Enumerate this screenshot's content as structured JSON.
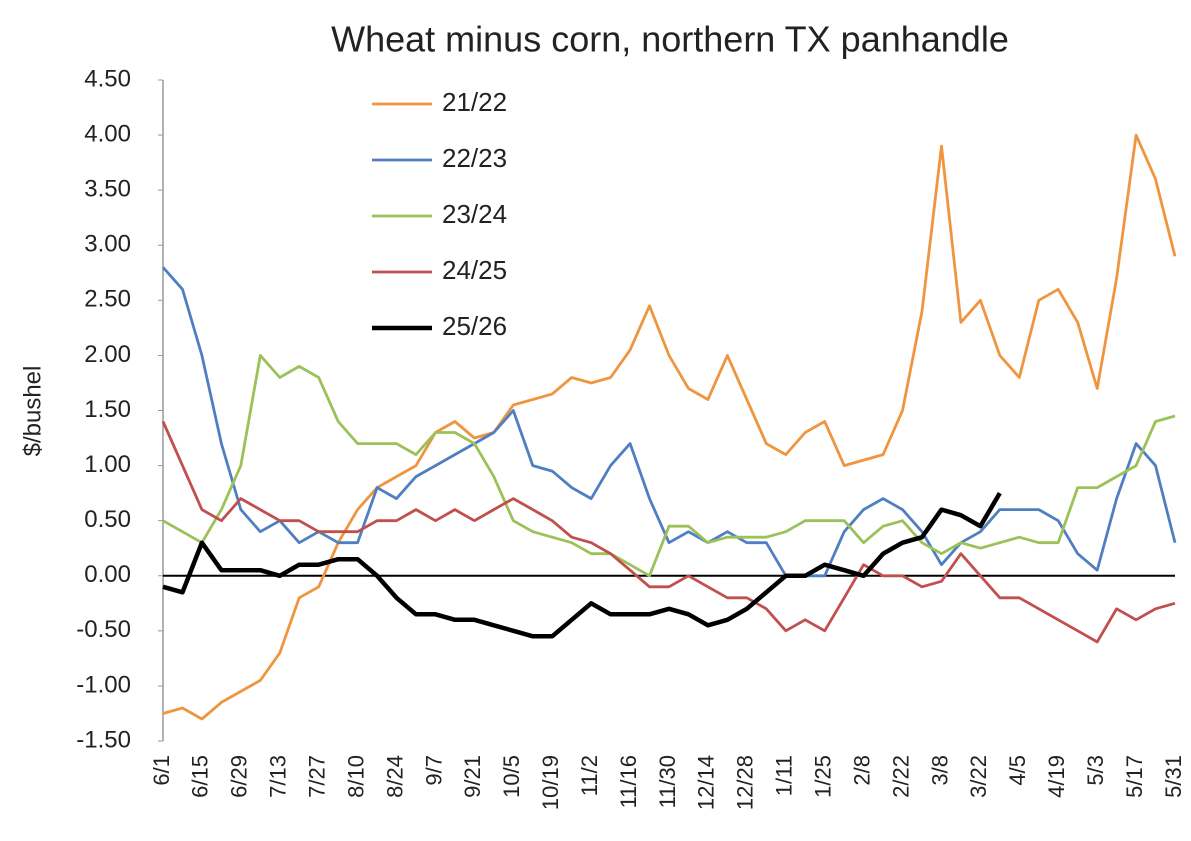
{
  "chart_data": {
    "type": "line",
    "title": "Wheat minus corn, northern TX panhandle",
    "y_label": "$/bushel",
    "categories": [
      "6/1",
      null,
      "6/15",
      null,
      "6/29",
      null,
      "7/13",
      null,
      "7/27",
      null,
      "8/10",
      null,
      "8/24",
      null,
      "9/7",
      null,
      "9/21",
      null,
      "10/5",
      null,
      "10/19",
      null,
      "11/2",
      null,
      "11/16",
      null,
      "11/30",
      null,
      "12/14",
      null,
      "12/28",
      null,
      "1/11",
      null,
      "1/25",
      null,
      "2/8",
      null,
      "2/22",
      null,
      "3/8",
      null,
      "3/22",
      null,
      "4/5",
      null,
      "4/19",
      null,
      "5/3",
      null,
      "5/17",
      null,
      "5/31"
    ],
    "ylim": [
      -1.5,
      4.5
    ],
    "yticks": [
      {
        "value": -1.5,
        "label": "-1.50"
      },
      {
        "value": -1,
        "label": "-1.00"
      },
      {
        "value": -0.5,
        "label": "-0.50"
      },
      {
        "value": 0,
        "label": "0.00"
      },
      {
        "value": 0.5,
        "label": "0.50"
      },
      {
        "value": 1,
        "label": "1.00"
      },
      {
        "value": 1.5,
        "label": "1.50"
      },
      {
        "value": 2,
        "label": "2.00"
      },
      {
        "value": 2.5,
        "label": "2.50"
      },
      {
        "value": 3,
        "label": "3.00"
      },
      {
        "value": 3.5,
        "label": "3.50"
      },
      {
        "value": 4,
        "label": "4.00"
      },
      {
        "value": 4.5,
        "label": "4.50"
      }
    ],
    "grid": false,
    "legend": "upper left",
    "series": [
      {
        "name": "21/22",
        "color": "#f0953f",
        "values": [
          -1.25,
          -1.2,
          -1.3,
          -1.15,
          -1.05,
          -0.95,
          -0.7,
          -0.2,
          -0.1,
          0.3,
          0.6,
          0.8,
          0.9,
          1.0,
          1.3,
          1.4,
          1.25,
          1.3,
          1.55,
          1.6,
          1.65,
          1.8,
          1.75,
          1.8,
          2.05,
          2.45,
          2.0,
          1.7,
          1.6,
          2.0,
          1.6,
          1.2,
          1.1,
          1.3,
          1.4,
          1.0,
          1.05,
          1.1,
          1.5,
          2.4,
          3.9,
          2.3,
          2.5,
          2.0,
          1.8,
          2.5,
          2.6,
          2.3,
          1.7,
          2.7,
          4.0,
          3.6,
          2.9
        ]
      },
      {
        "name": "22/23",
        "color": "#4f7fc0",
        "values": [
          2.8,
          2.6,
          2.0,
          1.2,
          0.6,
          0.4,
          0.5,
          0.3,
          0.4,
          0.3,
          0.3,
          0.8,
          0.7,
          0.9,
          1.0,
          1.1,
          1.2,
          1.3,
          1.5,
          1.0,
          0.95,
          0.8,
          0.7,
          1.0,
          1.2,
          0.7,
          0.3,
          0.4,
          0.3,
          0.4,
          0.3,
          0.3,
          0.0,
          0.0,
          0.0,
          0.4,
          0.6,
          0.7,
          0.6,
          0.4,
          0.1,
          0.3,
          0.4,
          0.6,
          0.6,
          0.6,
          0.5,
          0.2,
          0.05,
          0.7,
          1.2,
          1.0,
          0.3
        ]
      },
      {
        "name": "23/24",
        "color": "#9bc259",
        "values": [
          0.5,
          0.4,
          0.3,
          0.6,
          1.0,
          2.0,
          1.8,
          1.9,
          1.8,
          1.4,
          1.2,
          1.2,
          1.2,
          1.1,
          1.3,
          1.3,
          1.2,
          0.9,
          0.5,
          0.4,
          0.35,
          0.3,
          0.2,
          0.2,
          0.1,
          0.0,
          0.45,
          0.45,
          0.3,
          0.35,
          0.35,
          0.35,
          0.4,
          0.5,
          0.5,
          0.5,
          0.3,
          0.45,
          0.5,
          0.3,
          0.2,
          0.3,
          0.25,
          0.3,
          0.35,
          0.3,
          0.3,
          0.8,
          0.8,
          0.9,
          1.0,
          1.4,
          1.45
        ]
      },
      {
        "name": "24/25",
        "color": "#c0504d",
        "values": [
          1.4,
          1.0,
          0.6,
          0.5,
          0.7,
          0.6,
          0.5,
          0.5,
          0.4,
          0.4,
          0.4,
          0.5,
          0.5,
          0.6,
          0.5,
          0.6,
          0.5,
          0.6,
          0.7,
          0.6,
          0.5,
          0.35,
          0.3,
          0.2,
          0.05,
          -0.1,
          -0.1,
          0.0,
          -0.1,
          -0.2,
          -0.2,
          -0.3,
          -0.5,
          -0.4,
          -0.5,
          -0.2,
          0.1,
          0.0,
          0.0,
          -0.1,
          -0.05,
          0.2,
          0.0,
          -0.2,
          -0.2,
          -0.3,
          -0.4,
          -0.5,
          -0.6,
          -0.3,
          -0.4,
          -0.3,
          -0.25
        ]
      },
      {
        "name": "25/26",
        "color": "#000000",
        "values": [
          -0.1,
          -0.15,
          0.3,
          0.05,
          0.05,
          0.05,
          0.0,
          0.1,
          0.1,
          0.15,
          0.15,
          0.0,
          -0.2,
          -0.35,
          -0.35,
          -0.4,
          -0.4,
          -0.45,
          -0.5,
          -0.55,
          -0.55,
          -0.4,
          -0.25,
          -0.35,
          -0.35,
          -0.35,
          -0.3,
          -0.35,
          -0.45,
          -0.4,
          -0.3,
          -0.15,
          0.0,
          0.0,
          0.1,
          0.05,
          0.0,
          0.2,
          0.3,
          0.35,
          0.6,
          0.55,
          0.45,
          0.75,
          null,
          null,
          null,
          null,
          null,
          null,
          null,
          null,
          null
        ]
      }
    ]
  }
}
